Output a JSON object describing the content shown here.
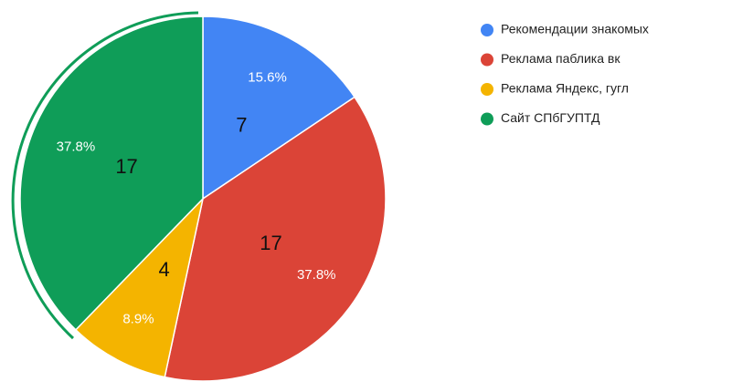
{
  "chart_data": {
    "type": "pie",
    "categories": [
      "Рекомендации знакомых",
      "Реклама паблика вк",
      "Реклама Яндекс, гугл",
      "Сайт СПбГУПТД"
    ],
    "values": [
      15.6,
      37.8,
      8.9,
      37.8
    ],
    "value_labels": [
      "15.6%",
      "37.8%",
      "8.9%",
      "37.8%"
    ],
    "counts": [
      7,
      17,
      4,
      17
    ],
    "colors": [
      "#4285f4",
      "#db4437",
      "#f4b400",
      "#0f9d58"
    ],
    "legend": "right"
  }
}
